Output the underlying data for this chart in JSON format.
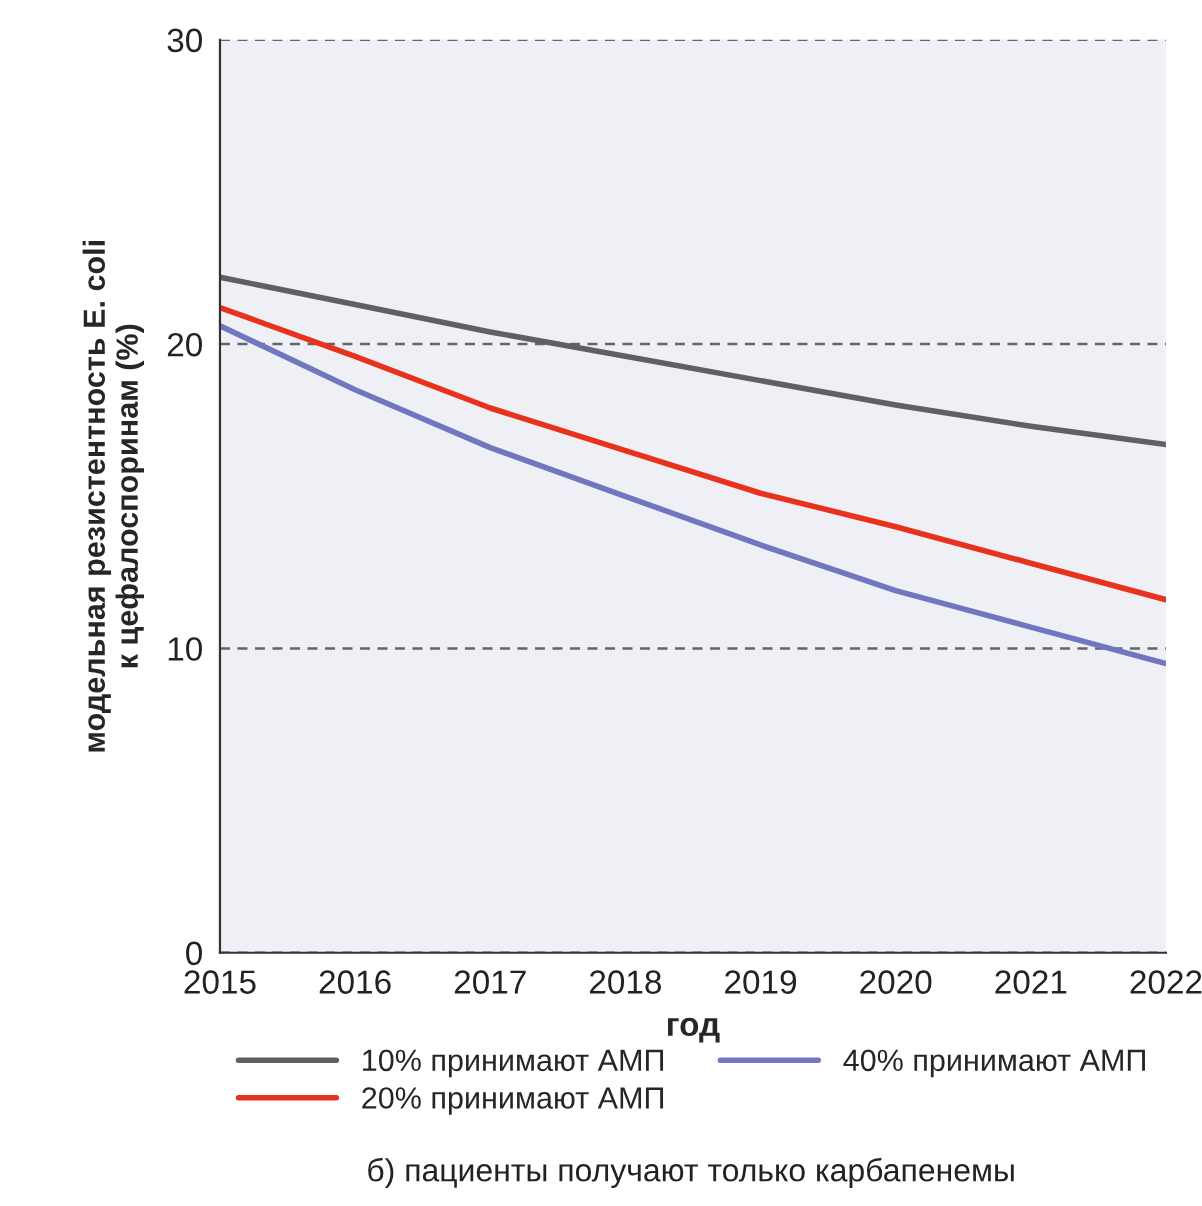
{
  "chart_data": {
    "type": "line",
    "xlabel": "год",
    "ylabel": "модельная резистентность E. coli\nк цефалоспоринам (%)",
    "x": [
      2015,
      2016,
      2017,
      2018,
      2019,
      2020,
      2021,
      2022
    ],
    "series": [
      {
        "name": "10% принимают АМП",
        "color": "#5f5f66",
        "values": [
          22.2,
          21.3,
          20.4,
          19.6,
          18.8,
          18.0,
          17.3,
          16.7
        ]
      },
      {
        "name": "20% принимают АМП",
        "color": "#e8321e",
        "values": [
          21.2,
          19.6,
          17.9,
          16.5,
          15.1,
          14.0,
          12.8,
          11.6
        ]
      },
      {
        "name": "40% принимают АМП",
        "color": "#7077c0",
        "values": [
          20.6,
          18.5,
          16.6,
          15.0,
          13.4,
          11.9,
          10.7,
          9.5
        ]
      }
    ],
    "xlim": [
      2015,
      2022
    ],
    "xticks": [
      2015,
      2016,
      2017,
      2018,
      2019,
      2020,
      2021,
      2022
    ],
    "ylim": [
      0,
      30
    ],
    "yticks": [
      0,
      10,
      20,
      30
    ],
    "grid": "y",
    "legend": "bottom",
    "marker": "none",
    "line_style": "solid",
    "annotations": [
      "б) пациенты получают только карбапенемы"
    ]
  }
}
